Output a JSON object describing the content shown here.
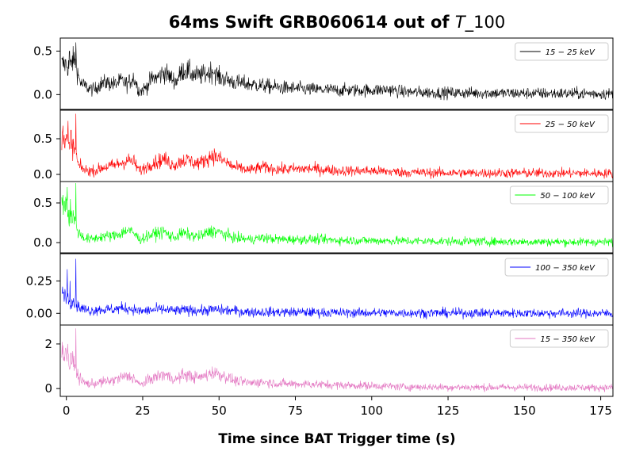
{
  "chart_data": {
    "type": "line",
    "title_main": "64ms Swift GRB060614 out of ",
    "title_italic": "T",
    "title_suffix": "_100",
    "xlabel": "Time since BAT Trigger time (s)",
    "xlim": [
      -2,
      179
    ],
    "xticks": [
      0,
      25,
      50,
      75,
      100,
      125,
      150,
      175
    ],
    "xtick_labels": [
      "0",
      "25",
      "50",
      "75",
      "100",
      "125",
      "150",
      "175"
    ],
    "panels": [
      {
        "name": "15 − 25 keV",
        "legend": "15 − 25 keV",
        "color": "#000000",
        "ylim": [
          -0.17,
          0.65
        ],
        "yticks": [
          0.0,
          0.5
        ],
        "ytick_labels": [
          "0.0",
          "0.5"
        ],
        "envelope": [
          [
            0,
            0.35
          ],
          [
            1,
            0.3
          ],
          [
            2,
            0.38
          ],
          [
            3,
            0.4
          ],
          [
            4,
            0.2
          ],
          [
            5,
            0.12
          ],
          [
            7,
            0.08
          ],
          [
            9,
            0.05
          ],
          [
            11,
            0.12
          ],
          [
            13,
            0.14
          ],
          [
            16,
            0.12
          ],
          [
            18,
            0.16
          ],
          [
            20,
            0.12
          ],
          [
            22,
            0.2
          ],
          [
            24,
            0.03
          ],
          [
            26,
            0.08
          ],
          [
            28,
            0.18
          ],
          [
            30,
            0.2
          ],
          [
            32,
            0.26
          ],
          [
            34,
            0.2
          ],
          [
            36,
            0.15
          ],
          [
            38,
            0.28
          ],
          [
            40,
            0.27
          ],
          [
            42,
            0.22
          ],
          [
            44,
            0.22
          ],
          [
            46,
            0.24
          ],
          [
            48,
            0.28
          ],
          [
            50,
            0.2
          ],
          [
            52,
            0.18
          ],
          [
            55,
            0.14
          ],
          [
            60,
            0.12
          ],
          [
            65,
            0.1
          ],
          [
            70,
            0.08
          ],
          [
            75,
            0.07
          ],
          [
            80,
            0.06
          ],
          [
            90,
            0.05
          ],
          [
            100,
            0.05
          ],
          [
            106,
            0.06
          ],
          [
            110,
            0.03
          ],
          [
            125,
            0.02
          ],
          [
            150,
            0.015
          ],
          [
            179,
            0.01
          ]
        ],
        "noise": 0.05,
        "spikes": [
          [
            1.0,
            0.5
          ],
          [
            2.0,
            0.45
          ],
          [
            3.1,
            0.6
          ]
        ]
      },
      {
        "name": "25 − 50 keV",
        "legend": "25 − 50 keV",
        "color": "#ff0000",
        "ylim": [
          -0.1,
          0.9
        ],
        "yticks": [
          0.0,
          0.5
        ],
        "ytick_labels": [
          "0.0",
          "0.5"
        ],
        "envelope": [
          [
            0,
            0.55
          ],
          [
            1,
            0.35
          ],
          [
            2,
            0.4
          ],
          [
            3,
            0.3
          ],
          [
            4,
            0.12
          ],
          [
            6,
            0.06
          ],
          [
            8,
            0.05
          ],
          [
            10,
            0.06
          ],
          [
            12,
            0.1
          ],
          [
            15,
            0.12
          ],
          [
            18,
            0.16
          ],
          [
            20,
            0.2
          ],
          [
            22,
            0.18
          ],
          [
            24,
            0.05
          ],
          [
            26,
            0.1
          ],
          [
            28,
            0.16
          ],
          [
            30,
            0.18
          ],
          [
            32,
            0.22
          ],
          [
            34,
            0.15
          ],
          [
            36,
            0.14
          ],
          [
            38,
            0.2
          ],
          [
            40,
            0.2
          ],
          [
            42,
            0.16
          ],
          [
            44,
            0.16
          ],
          [
            46,
            0.22
          ],
          [
            48,
            0.27
          ],
          [
            50,
            0.22
          ],
          [
            52,
            0.18
          ],
          [
            55,
            0.1
          ],
          [
            60,
            0.06
          ],
          [
            64,
            0.1
          ],
          [
            70,
            0.07
          ],
          [
            80,
            0.08
          ],
          [
            90,
            0.05
          ],
          [
            100,
            0.05
          ],
          [
            110,
            0.03
          ],
          [
            125,
            0.02
          ],
          [
            150,
            0.02
          ],
          [
            179,
            0.015
          ]
        ],
        "noise": 0.05,
        "spikes": [
          [
            0.5,
            0.75
          ],
          [
            1.5,
            0.62
          ],
          [
            3.1,
            0.85
          ]
        ]
      },
      {
        "name": "50 − 100 keV",
        "legend": "50 − 100 keV",
        "color": "#00ff00",
        "ylim": [
          -0.13,
          0.77
        ],
        "yticks": [
          0.0,
          0.5
        ],
        "ytick_labels": [
          "0.0",
          "0.5"
        ],
        "envelope": [
          [
            0,
            0.5
          ],
          [
            1,
            0.3
          ],
          [
            2,
            0.35
          ],
          [
            3,
            0.25
          ],
          [
            4,
            0.12
          ],
          [
            6,
            0.06
          ],
          [
            8,
            0.04
          ],
          [
            10,
            0.06
          ],
          [
            12,
            0.08
          ],
          [
            15,
            0.08
          ],
          [
            18,
            0.12
          ],
          [
            20,
            0.16
          ],
          [
            22,
            0.12
          ],
          [
            24,
            0.04
          ],
          [
            26,
            0.07
          ],
          [
            28,
            0.1
          ],
          [
            30,
            0.12
          ],
          [
            32,
            0.14
          ],
          [
            34,
            0.08
          ],
          [
            36,
            0.07
          ],
          [
            38,
            0.12
          ],
          [
            40,
            0.1
          ],
          [
            42,
            0.08
          ],
          [
            44,
            0.08
          ],
          [
            46,
            0.12
          ],
          [
            48,
            0.15
          ],
          [
            50,
            0.13
          ],
          [
            52,
            0.1
          ],
          [
            55,
            0.06
          ],
          [
            60,
            0.04
          ],
          [
            64,
            0.06
          ],
          [
            70,
            0.04
          ],
          [
            80,
            0.04
          ],
          [
            90,
            0.03
          ],
          [
            100,
            0.025
          ],
          [
            125,
            0.015
          ],
          [
            150,
            0.01
          ],
          [
            179,
            0.005
          ]
        ],
        "noise": 0.04,
        "spikes": [
          [
            0.3,
            0.7
          ],
          [
            1.3,
            0.55
          ],
          [
            3.1,
            0.75
          ]
        ]
      },
      {
        "name": "100 − 350 keV",
        "legend": "100 − 350 keV",
        "color": "#0000ff",
        "ylim": [
          -0.09,
          0.46
        ],
        "yticks": [
          0.0,
          0.25
        ],
        "ytick_labels": [
          "0.00",
          "0.25"
        ],
        "envelope": [
          [
            0,
            0.15
          ],
          [
            1,
            0.1
          ],
          [
            2,
            0.1
          ],
          [
            3,
            0.08
          ],
          [
            4,
            0.05
          ],
          [
            6,
            0.03
          ],
          [
            8,
            0.02
          ],
          [
            10,
            0.03
          ],
          [
            12,
            0.03
          ],
          [
            15,
            0.03
          ],
          [
            18,
            0.04
          ],
          [
            20,
            0.04
          ],
          [
            22,
            0.03
          ],
          [
            24,
            0.015
          ],
          [
            26,
            0.02
          ],
          [
            28,
            0.025
          ],
          [
            30,
            0.03
          ],
          [
            32,
            0.03
          ],
          [
            35,
            0.02
          ],
          [
            40,
            0.025
          ],
          [
            45,
            0.02
          ],
          [
            48,
            0.03
          ],
          [
            50,
            0.025
          ],
          [
            55,
            0.02
          ],
          [
            60,
            0.01
          ],
          [
            70,
            0.01
          ],
          [
            90,
            0.005
          ],
          [
            179,
            0.0
          ]
        ],
        "noise": 0.028,
        "spikes": [
          [
            0.3,
            0.34
          ],
          [
            1.2,
            0.25
          ],
          [
            3.1,
            0.42
          ]
        ]
      },
      {
        "name": "15 − 350 keV",
        "legend": "15 − 350 keV",
        "color": "#e377c2",
        "ylim": [
          -0.35,
          2.85
        ],
        "yticks": [
          0,
          2
        ],
        "ytick_labels": [
          "0",
          "2"
        ],
        "envelope": [
          [
            0,
            1.6
          ],
          [
            1,
            1.0
          ],
          [
            2,
            1.2
          ],
          [
            3,
            0.9
          ],
          [
            4,
            0.5
          ],
          [
            6,
            0.25
          ],
          [
            8,
            0.2
          ],
          [
            10,
            0.25
          ],
          [
            12,
            0.3
          ],
          [
            15,
            0.35
          ],
          [
            18,
            0.5
          ],
          [
            20,
            0.55
          ],
          [
            22,
            0.5
          ],
          [
            24,
            0.15
          ],
          [
            26,
            0.3
          ],
          [
            28,
            0.45
          ],
          [
            30,
            0.55
          ],
          [
            32,
            0.65
          ],
          [
            34,
            0.5
          ],
          [
            36,
            0.4
          ],
          [
            38,
            0.6
          ],
          [
            40,
            0.6
          ],
          [
            42,
            0.5
          ],
          [
            44,
            0.5
          ],
          [
            46,
            0.6
          ],
          [
            48,
            0.75
          ],
          [
            50,
            0.65
          ],
          [
            52,
            0.55
          ],
          [
            55,
            0.35
          ],
          [
            60,
            0.25
          ],
          [
            64,
            0.3
          ],
          [
            70,
            0.22
          ],
          [
            80,
            0.2
          ],
          [
            90,
            0.15
          ],
          [
            100,
            0.13
          ],
          [
            110,
            0.08
          ],
          [
            125,
            0.06
          ],
          [
            150,
            0.05
          ],
          [
            179,
            0.04
          ]
        ],
        "noise": 0.12,
        "spikes": [
          [
            0.4,
            2.0
          ],
          [
            1.5,
            1.6
          ],
          [
            3.1,
            2.7
          ]
        ]
      }
    ]
  }
}
